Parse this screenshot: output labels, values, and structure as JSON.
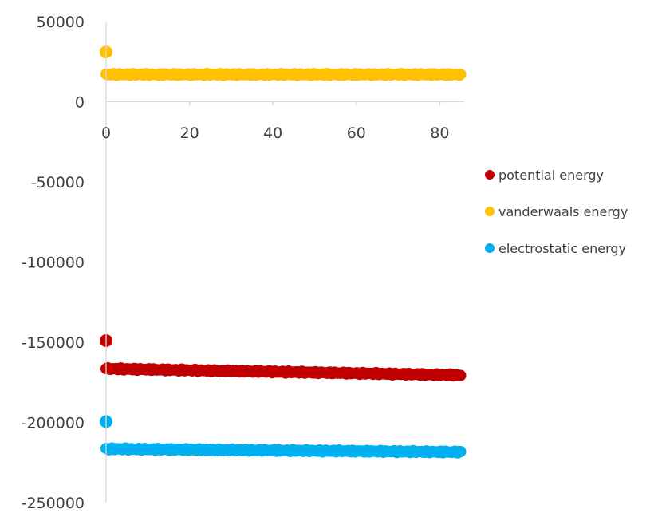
{
  "chart_data": {
    "type": "scatter",
    "title": "",
    "xlabel": "",
    "ylabel": "",
    "xlim": [
      0,
      85
    ],
    "ylim": [
      -250000,
      50000
    ],
    "x_ticks": [
      0,
      20,
      40,
      60,
      80
    ],
    "x_tick_labels": [
      "0",
      "20",
      "40",
      "60",
      "80"
    ],
    "y_ticks": [
      50000,
      0,
      -50000,
      -100000,
      -150000,
      -200000,
      -250000
    ],
    "y_tick_labels": [
      "50000",
      "0",
      "-50000",
      "-100000",
      "-150000",
      "-200000",
      "-250000"
    ],
    "x_axis_crosses_at": 0,
    "grid": false,
    "legend_position": "right",
    "series": [
      {
        "name": "potential energy",
        "color": "#C00000",
        "outlier": {
          "x": 0,
          "y": -149000
        },
        "x_range": [
          0,
          85
        ],
        "y_start": -166500,
        "y_end": -170500,
        "jitter": 700
      },
      {
        "name": "vanderwaals energy",
        "color": "#FFC000",
        "outlier": {
          "x": 0,
          "y": 31000
        },
        "x_range": [
          0,
          85
        ],
        "y_start": 17000,
        "y_end": 17000,
        "jitter": 700
      },
      {
        "name": "electrostatic energy",
        "color": "#00B0F0",
        "outlier": {
          "x": 0,
          "y": -199500
        },
        "x_range": [
          0,
          85
        ],
        "y_start": -216500,
        "y_end": -218500,
        "jitter": 700
      }
    ]
  }
}
